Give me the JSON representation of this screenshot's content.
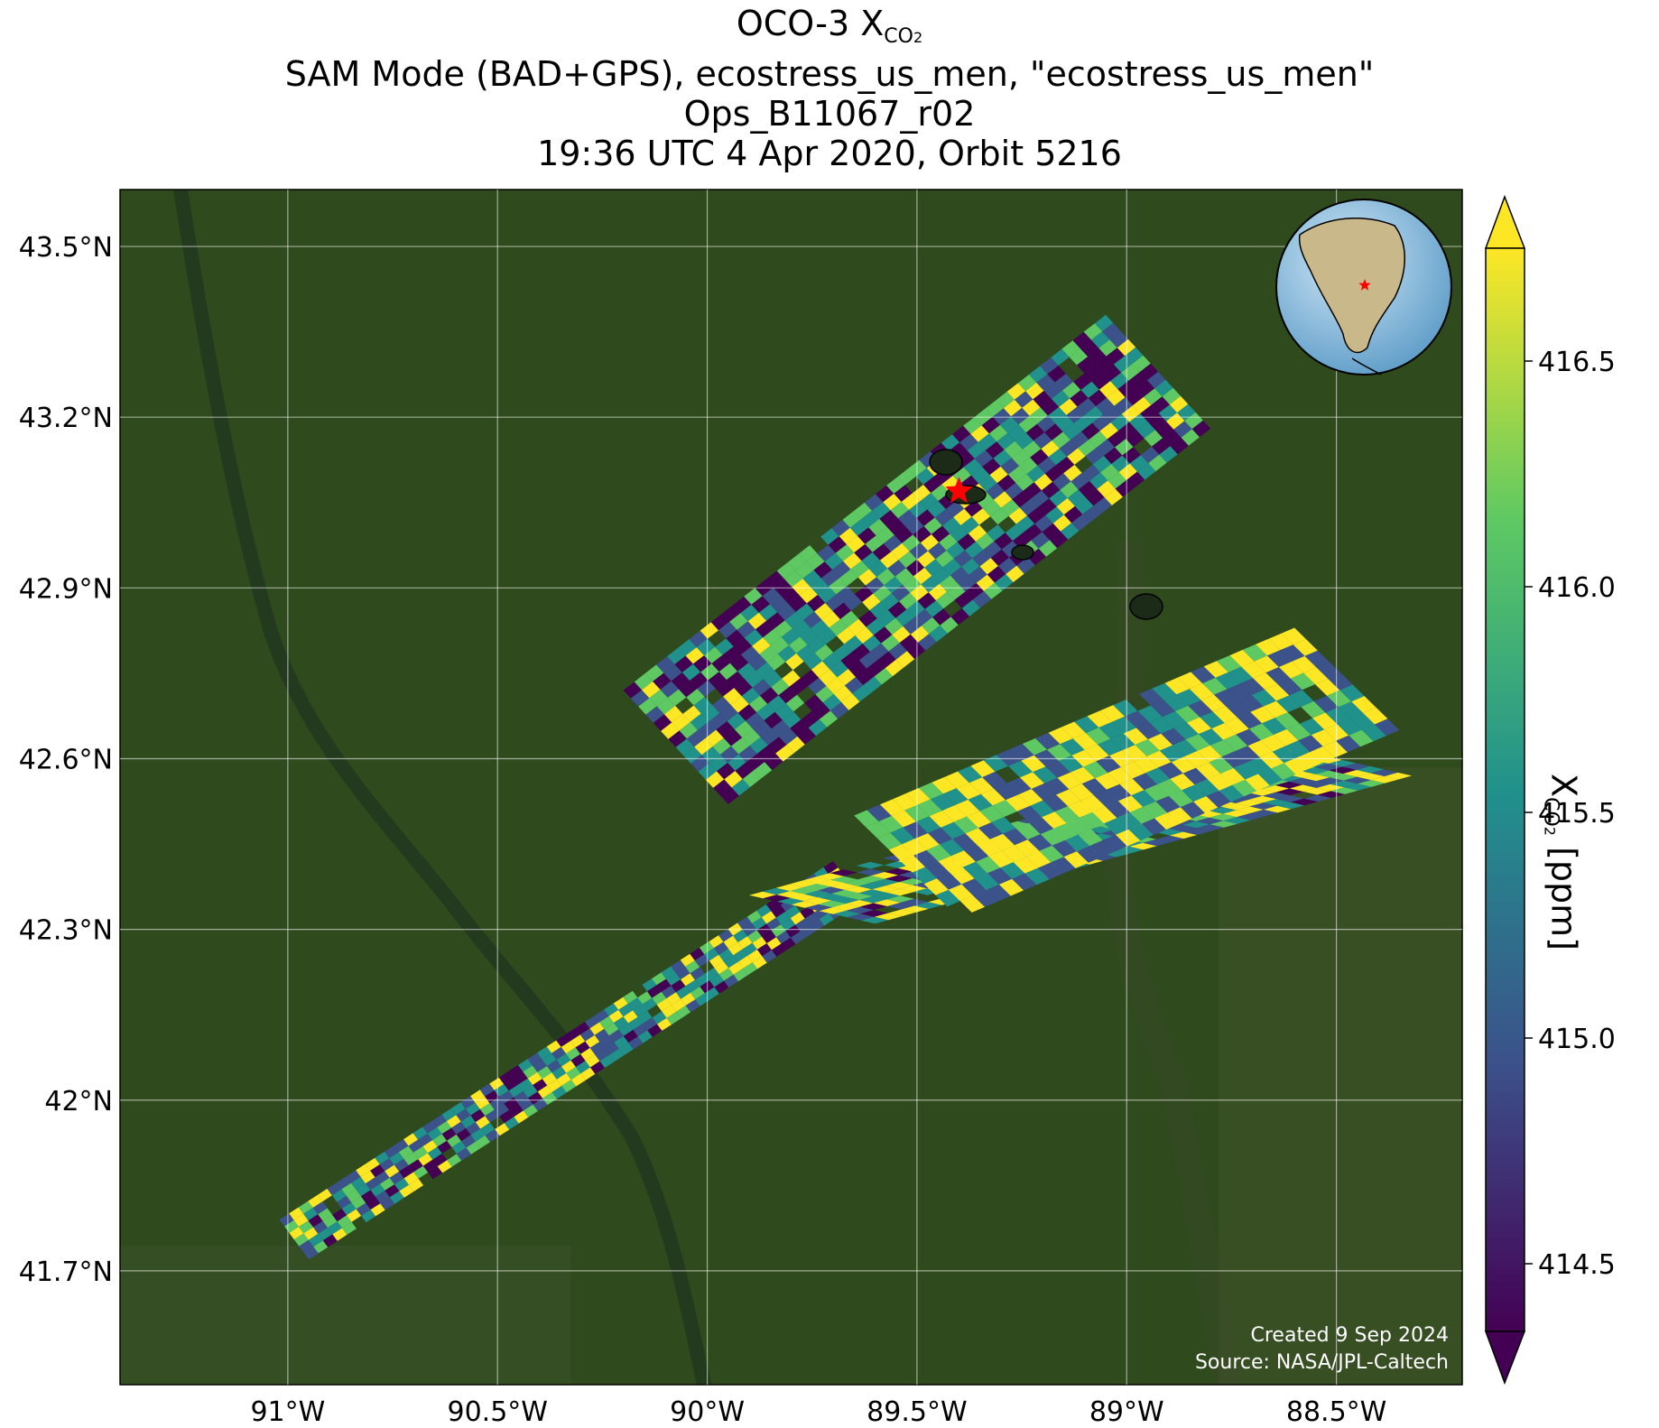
{
  "title": {
    "line1_prefix": "OCO-3 X",
    "line1_sub": "CO",
    "line1_subsub": "2",
    "line2": "SAM Mode (BAD+GPS), ecostress_us_men, \"ecostress_us_men\"",
    "line3": "Ops_B11067_r02",
    "line4": "19:36 UTC 4 Apr 2020, Orbit 5216"
  },
  "map": {
    "lon_range": [
      -91.4,
      -88.2
    ],
    "lat_range": [
      41.5,
      43.6
    ],
    "lon_ticks": [
      {
        "value": -91.0,
        "label": "91°W"
      },
      {
        "value": -90.5,
        "label": "90.5°W"
      },
      {
        "value": -90.0,
        "label": "90°W"
      },
      {
        "value": -89.5,
        "label": "89.5°W"
      },
      {
        "value": -89.0,
        "label": "89°W"
      },
      {
        "value": -88.5,
        "label": "88.5°W"
      }
    ],
    "lat_ticks": [
      {
        "value": 43.5,
        "label": "43.5°N"
      },
      {
        "value": 43.2,
        "label": "43.2°N"
      },
      {
        "value": 42.9,
        "label": "42.9°N"
      },
      {
        "value": 42.6,
        "label": "42.6°N"
      },
      {
        "value": 42.3,
        "label": "42.3°N"
      },
      {
        "value": 42.0,
        "label": "42°N"
      },
      {
        "value": 41.7,
        "label": "41.7°N"
      }
    ],
    "grid": true,
    "target_marker": {
      "lon": -89.4,
      "lat": 43.07,
      "color": "#ff0000",
      "shape": "star"
    },
    "background": "satellite imagery (green farmland)",
    "inset_globe": {
      "marker_color": "#ff0000",
      "location": "top-right"
    }
  },
  "colorbar": {
    "label_prefix": "X",
    "label_sub": "CO",
    "label_subsub": "2",
    "label_suffix": " [ppm]",
    "range": [
      414.35,
      416.75
    ],
    "ticks": [
      {
        "value": 414.5,
        "label": "414.5"
      },
      {
        "value": 415.0,
        "label": "415.0"
      },
      {
        "value": 415.5,
        "label": "415.5"
      },
      {
        "value": 416.0,
        "label": "416.0"
      },
      {
        "value": 416.5,
        "label": "416.5"
      }
    ],
    "colormap": "viridis",
    "extend": "both",
    "colors": [
      "#440154",
      "#3b528b",
      "#21918c",
      "#5ec962",
      "#fde725"
    ]
  },
  "credits": {
    "created": "Created 9 Sep 2024",
    "source": "Source: NASA/JPL-Caltech"
  },
  "chart_data": {
    "type": "heatmap",
    "description_units": "XCO2 ppm soundings along OCO-3 SAM swaths",
    "swaths": [
      {
        "name": "",
        "lon_range": [
          -91.05,
          -89.7
        ],
        "lat_range": [
          41.72,
          42.42
        ],
        "mean_xco2": 415.6
      },
      {
        "name": "",
        "lon_range": [
          -89.85,
          -88.6
        ],
        "lat_range": [
          42.31,
          42.85
        ],
        "mean_xco2": 415.9
      },
      {
        "name": "",
        "lon_range": [
          -90.2,
          -89.05
        ],
        "lat_range": [
          42.52,
          43.38
        ],
        "mean_xco2": 415.2
      }
    ]
  }
}
